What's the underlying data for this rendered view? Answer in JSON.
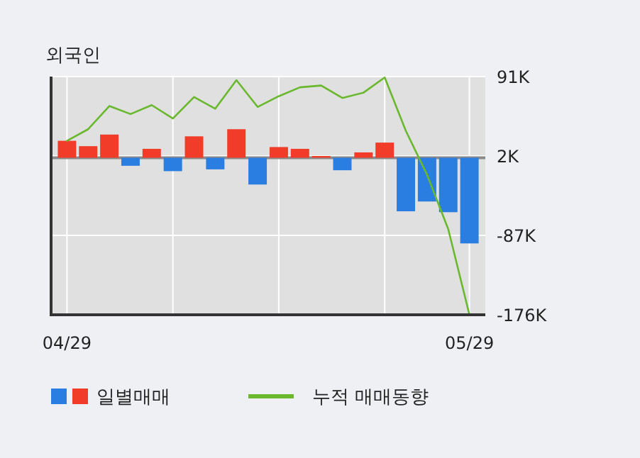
{
  "chart_data": {
    "type": "bar",
    "title": "외국인",
    "categories": [
      "04/29",
      null,
      null,
      null,
      null,
      null,
      null,
      null,
      null,
      null,
      null,
      null,
      null,
      null,
      null,
      null,
      null,
      null,
      null,
      "05/29"
    ],
    "series": [
      {
        "name": "일별매매",
        "values": [
          19,
          13,
          26,
          -9,
          10,
          -15,
          24,
          -13,
          32,
          -30,
          12,
          10,
          2,
          -14,
          6,
          17,
          -60,
          -49,
          -61,
          -96
        ],
        "colors": [
          "#f03c28",
          "#f03c28",
          "#f03c28",
          "#2a7de1",
          "#f03c28",
          "#2a7de1",
          "#f03c28",
          "#2a7de1",
          "#f03c28",
          "#2a7de1",
          "#f03c28",
          "#f03c28",
          "#f03c28",
          "#2a7de1",
          "#f03c28",
          "#f03c28",
          "#2a7de1",
          "#2a7de1",
          "#2a7de1",
          "#2a7de1"
        ]
      },
      {
        "name": "누적 매매동향",
        "type": "line",
        "color": "#6ab82e",
        "values": [
          19,
          32,
          58,
          49,
          59,
          44,
          68,
          55,
          87,
          57,
          69,
          79,
          81,
          67,
          73,
          90,
          30,
          -19,
          -80,
          -176
        ]
      }
    ],
    "ylim": [
      -176,
      91
    ],
    "yticks": [
      {
        "value": 91,
        "label": "91K"
      },
      {
        "value": 2,
        "label": "2K"
      },
      {
        "value": -87,
        "label": "-87K"
      },
      {
        "value": -176,
        "label": "-176K"
      }
    ],
    "grid": true,
    "legend": "bottom"
  }
}
